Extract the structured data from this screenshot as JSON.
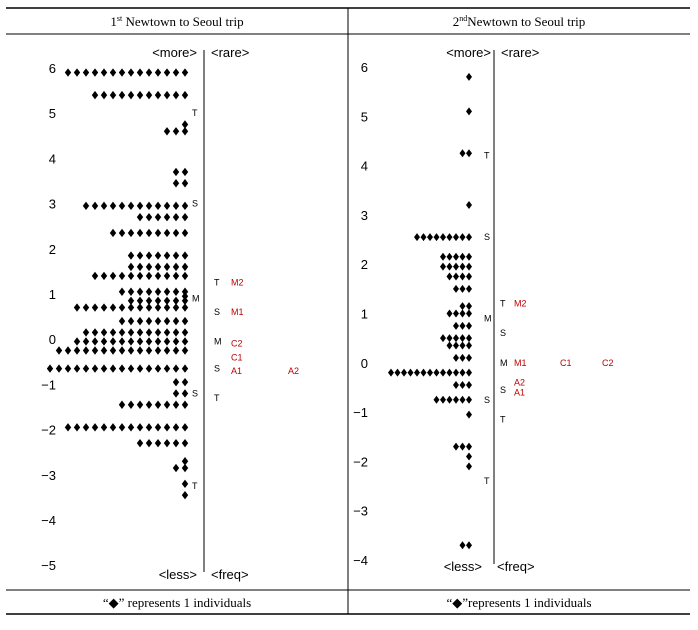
{
  "chart_data": [
    {
      "type": "dot-plot",
      "header_prefix": "1",
      "header_sup": "st",
      "header_rest": " Newtown to Seoul trip",
      "top_left_label": "<more>",
      "top_right_label": "<rare>",
      "bottom_left_label": "<less>",
      "bottom_right_label": "<freq>",
      "ylim": [
        -5,
        6.5
      ],
      "y_ticks": [
        "6",
        "5",
        "4",
        "3",
        "2",
        "1",
        "0",
        "−1",
        "−2",
        "−3",
        "−4",
        "−5"
      ],
      "y_tick_values": [
        6,
        5,
        4,
        3,
        2,
        1,
        0,
        -1,
        -2,
        -3,
        -4,
        -5
      ],
      "dot_rows": [
        {
          "y": 5.9,
          "count": 14
        },
        {
          "y": 5.4,
          "count": 11
        },
        {
          "y": 4.75,
          "count": 1
        },
        {
          "y": 4.6,
          "count": 3
        },
        {
          "y": 3.7,
          "count": 2
        },
        {
          "y": 3.45,
          "count": 2
        },
        {
          "y": 2.95,
          "count": 12
        },
        {
          "y": 2.7,
          "count": 6
        },
        {
          "y": 2.35,
          "count": 9
        },
        {
          "y": 1.85,
          "count": 7
        },
        {
          "y": 1.6,
          "count": 7
        },
        {
          "y": 1.4,
          "count": 11
        },
        {
          "y": 1.05,
          "count": 8
        },
        {
          "y": 0.95,
          "count": 1
        },
        {
          "y": 0.85,
          "count": 7
        },
        {
          "y": 0.7,
          "count": 13
        },
        {
          "y": 0.4,
          "count": 8
        },
        {
          "y": 0.15,
          "count": 12
        },
        {
          "y": -0.05,
          "count": 13
        },
        {
          "y": -0.25,
          "count": 15
        },
        {
          "y": -0.65,
          "count": 16
        },
        {
          "y": -0.95,
          "count": 2
        },
        {
          "y": -1.2,
          "count": 2
        },
        {
          "y": -1.45,
          "count": 8
        },
        {
          "y": -1.95,
          "count": 14
        },
        {
          "y": -2.3,
          "count": 6
        },
        {
          "y": -2.7,
          "count": 1
        },
        {
          "y": -2.85,
          "count": 2
        },
        {
          "y": -3.2,
          "count": 1
        },
        {
          "y": -3.45,
          "count": 1
        }
      ],
      "markers_left": [
        {
          "text": "T",
          "y": 5.0
        },
        {
          "text": "S",
          "y": 3.0
        },
        {
          "text": "M",
          "y": 0.9
        },
        {
          "text": "S",
          "y": -1.2
        }
      ],
      "markers_mid": [
        {
          "text": "T",
          "y": 1.25
        },
        {
          "text": "S",
          "y": 0.6
        },
        {
          "text": "M",
          "y": -0.05
        },
        {
          "text": "S",
          "y": -0.65
        },
        {
          "text": "T",
          "y": -1.3
        }
      ],
      "codes": [
        {
          "text": "M2",
          "y": 1.25,
          "col": 0
        },
        {
          "text": "M1",
          "y": 0.6,
          "col": 0
        },
        {
          "text": "C2",
          "y": -0.1,
          "col": 0
        },
        {
          "text": "C1",
          "y": -0.4,
          "col": 0
        },
        {
          "text": "A1",
          "y": -0.7,
          "col": 0
        },
        {
          "text": "A2",
          "y": -0.7,
          "col": 1
        }
      ],
      "markers_bottom": [
        {
          "text": "T",
          "y": -3.25
        }
      ],
      "footnote_open": "“",
      "footnote_symbol": "◆",
      "footnote_rest": "” represents 1 individuals"
    },
    {
      "type": "dot-plot",
      "header_prefix": "2",
      "header_sup": "nd",
      "header_rest": "Newtown to Seoul trip",
      "top_left_label": "<more>",
      "top_right_label": "<rare>",
      "bottom_left_label": "<less>",
      "bottom_right_label": "<freq>",
      "ylim": [
        -4.2,
        6.3
      ],
      "y_ticks": [
        "6",
        "5",
        "4",
        "3",
        "2",
        "1",
        "0",
        "−1",
        "−2",
        "−3",
        "−4"
      ],
      "y_tick_values": [
        6,
        5,
        4,
        3,
        2,
        1,
        0,
        -1,
        -2,
        -3,
        -4
      ],
      "dot_rows": [
        {
          "y": 5.8,
          "count": 1
        },
        {
          "y": 5.1,
          "count": 1
        },
        {
          "y": 4.25,
          "count": 2
        },
        {
          "y": 3.2,
          "count": 1
        },
        {
          "y": 2.55,
          "count": 9
        },
        {
          "y": 2.15,
          "count": 5
        },
        {
          "y": 1.95,
          "count": 5
        },
        {
          "y": 1.75,
          "count": 4
        },
        {
          "y": 1.5,
          "count": 3
        },
        {
          "y": 1.15,
          "count": 2
        },
        {
          "y": 1.0,
          "count": 4
        },
        {
          "y": 0.75,
          "count": 3
        },
        {
          "y": 0.5,
          "count": 5
        },
        {
          "y": 0.35,
          "count": 4
        },
        {
          "y": 0.1,
          "count": 3
        },
        {
          "y": -0.2,
          "count": 13
        },
        {
          "y": -0.45,
          "count": 3
        },
        {
          "y": -0.75,
          "count": 6
        },
        {
          "y": -1.05,
          "count": 1
        },
        {
          "y": -1.7,
          "count": 3
        },
        {
          "y": -1.9,
          "count": 1
        },
        {
          "y": -2.1,
          "count": 1
        },
        {
          "y": -3.7,
          "count": 2
        }
      ],
      "markers_left": [
        {
          "text": "T",
          "y": 4.2
        },
        {
          "text": "S",
          "y": 2.55
        },
        {
          "text": "M",
          "y": 0.9
        },
        {
          "text": "S",
          "y": -0.75
        },
        {
          "text": "T",
          "y": -2.4
        }
      ],
      "markers_mid": [
        {
          "text": "T",
          "y": 1.2
        },
        {
          "text": "S",
          "y": 0.6
        },
        {
          "text": "M",
          "y": 0.0
        },
        {
          "text": "S",
          "y": -0.55
        },
        {
          "text": "T",
          "y": -1.15
        }
      ],
      "codes": [
        {
          "text": "M2",
          "y": 1.2,
          "col": 0
        },
        {
          "text": "M1",
          "y": 0.0,
          "col": 0
        },
        {
          "text": "C1",
          "y": 0.0,
          "col": 1
        },
        {
          "text": "C2",
          "y": 0.0,
          "col": 2
        },
        {
          "text": "A2",
          "y": -0.4,
          "col": 0
        },
        {
          "text": "A1",
          "y": -0.6,
          "col": 0
        }
      ],
      "markers_bottom": [],
      "footnote_open": "“",
      "footnote_symbol": "◆",
      "footnote_rest": "”represents 1 individuals"
    }
  ]
}
